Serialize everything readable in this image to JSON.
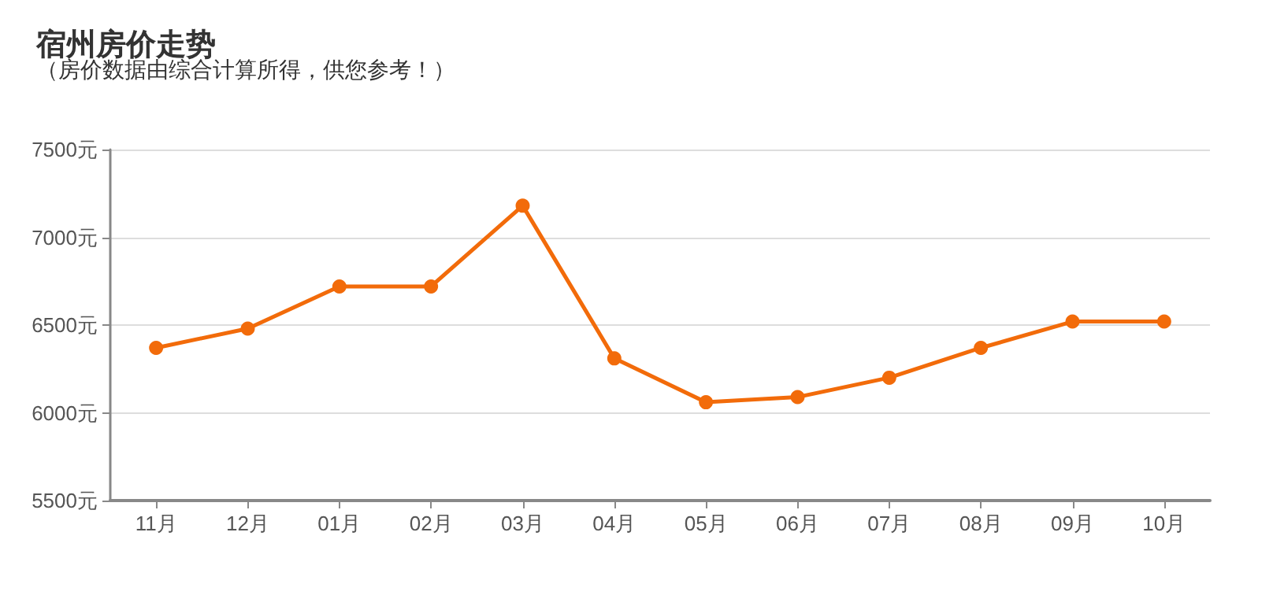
{
  "chart_data": {
    "type": "line",
    "title": "宿州房价走势",
    "subtitle": "（房价数据由综合计算所得，供您参考！）",
    "categories": [
      "11月",
      "12月",
      "01月",
      "02月",
      "03月",
      "04月",
      "05月",
      "06月",
      "07月",
      "08月",
      "09月",
      "10月"
    ],
    "series": [
      {
        "color": "#f26b0a",
        "values": [
          6370,
          6480,
          6720,
          6720,
          7180,
          6310,
          6060,
          6090,
          6200,
          6370,
          6520,
          6520
        ]
      }
    ],
    "ylim": [
      5500,
      7500
    ],
    "yticks": [
      {
        "value": 5500,
        "label": "5500元"
      },
      {
        "value": 6000,
        "label": "6000元"
      },
      {
        "value": 6500,
        "label": "6500元"
      },
      {
        "value": 7000,
        "label": "7000元"
      },
      {
        "value": 7500,
        "label": "7500元"
      }
    ],
    "grid": "y",
    "marker": "circle",
    "line_style": "solid"
  }
}
